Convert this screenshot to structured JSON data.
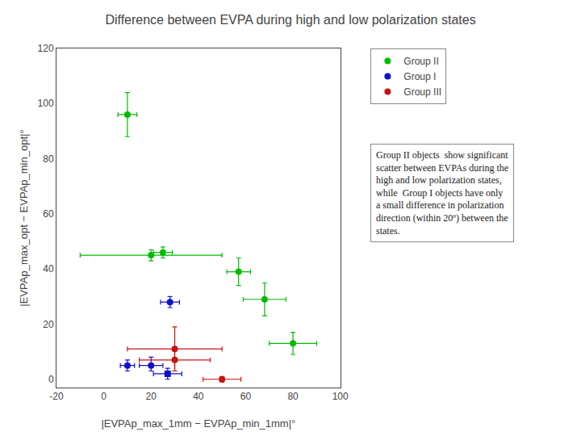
{
  "chart_data": {
    "type": "scatter",
    "title": "Difference between EVPA during high and low polarization states",
    "xlabel": "|EVPAp_max_1mm − EVPAp_min_1mm|°",
    "ylabel": "|EVPAp_max_opt − EVPAp_min_opt|°",
    "xlim": [
      -20,
      100
    ],
    "ylim": [
      -3,
      120
    ],
    "xticks": [
      -20,
      0,
      20,
      40,
      60,
      80,
      100
    ],
    "yticks": [
      0,
      20,
      40,
      60,
      80,
      100,
      120
    ],
    "grid": false,
    "legend": "upper right",
    "annotations": [
      "Group II objects  show significant\nscatter between EVPAs during the\nhigh and low polarization states,\nwhile  Group I objects have only\na small difference in polarization\ndirection (within 20º) between the\nstates."
    ],
    "series": [
      {
        "name": "Group II",
        "color": "#00bb00",
        "marker": "circle",
        "x": [
          10,
          20,
          25,
          57,
          68,
          80
        ],
        "y": [
          96,
          45,
          46,
          39,
          29,
          13
        ],
        "xerr_lo": [
          4,
          30,
          4,
          5,
          9,
          10
        ],
        "xerr_hi": [
          4,
          30,
          4,
          5,
          9,
          10
        ],
        "yerr_lo": [
          8,
          2,
          2,
          5,
          6,
          4
        ],
        "yerr_hi": [
          8,
          2,
          2,
          5,
          6,
          4
        ]
      },
      {
        "name": "Group I",
        "color": "#1111cc",
        "markers": [
          "circle",
          "circle",
          "circle",
          "square"
        ],
        "x": [
          10,
          20,
          28,
          27
        ],
        "y": [
          5,
          5,
          28,
          2
        ],
        "xerr_lo": [
          3,
          5,
          4,
          6
        ],
        "xerr_hi": [
          3,
          5,
          4,
          6
        ],
        "yerr_lo": [
          2,
          2,
          2,
          2
        ],
        "yerr_hi": [
          2,
          3,
          2,
          2
        ]
      },
      {
        "name": "Group III",
        "color": "#cc1111",
        "marker": "circle",
        "x": [
          30,
          30,
          50
        ],
        "y": [
          11,
          7,
          0
        ],
        "xerr_lo": [
          20,
          15,
          8
        ],
        "xerr_hi": [
          20,
          15,
          8
        ],
        "yerr_lo": [
          8,
          4,
          1
        ],
        "yerr_hi": [
          8,
          4,
          1
        ]
      }
    ]
  }
}
